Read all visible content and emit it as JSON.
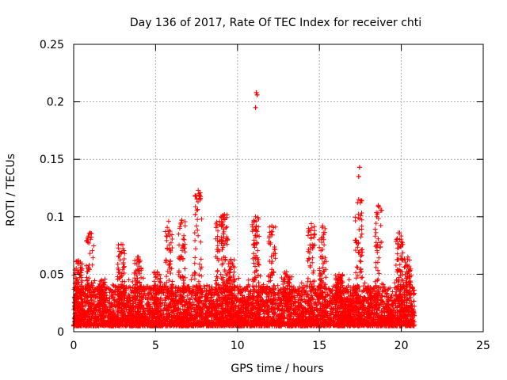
{
  "chart_data": {
    "type": "scatter",
    "title": "Day 136 of 2017, Rate Of TEC Index for receiver chti",
    "xlabel": "GPS time / hours",
    "ylabel": "ROTI / TECUs",
    "xlim": [
      0,
      25
    ],
    "ylim": [
      0,
      0.25
    ],
    "xticks": [
      0,
      5,
      10,
      15,
      20,
      25
    ],
    "yticks": [
      0,
      0.05,
      0.1,
      0.15,
      0.2,
      0.25
    ],
    "xtick_labels": [
      "0",
      "5",
      "10",
      "15",
      "20",
      "25"
    ],
    "ytick_labels": [
      "0",
      "0.05",
      "0.1",
      "0.15",
      "0.2",
      "0.25"
    ],
    "grid": true,
    "marker": "+",
    "color": "#ff0000",
    "data_range_hours": [
      0,
      20.8
    ],
    "baseline_band": [
      0.005,
      0.04
    ],
    "bursts": [
      {
        "x": 0.3,
        "ymax": 0.062
      },
      {
        "x": 1.0,
        "ymax": 0.086
      },
      {
        "x": 1.7,
        "ymax": 0.045
      },
      {
        "x": 2.9,
        "ymax": 0.076
      },
      {
        "x": 3.9,
        "ymax": 0.065
      },
      {
        "x": 5.1,
        "ymax": 0.052
      },
      {
        "x": 5.8,
        "ymax": 0.096
      },
      {
        "x": 6.6,
        "ymax": 0.097
      },
      {
        "x": 7.6,
        "ymax": 0.123
      },
      {
        "x": 8.9,
        "ymax": 0.096
      },
      {
        "x": 9.2,
        "ymax": 0.102
      },
      {
        "x": 9.6,
        "ymax": 0.063
      },
      {
        "x": 11.1,
        "ymax": 0.1
      },
      {
        "x": 12.1,
        "ymax": 0.092
      },
      {
        "x": 13.0,
        "ymax": 0.052
      },
      {
        "x": 14.5,
        "ymax": 0.094
      },
      {
        "x": 15.2,
        "ymax": 0.092
      },
      {
        "x": 16.2,
        "ymax": 0.05
      },
      {
        "x": 17.4,
        "ymax": 0.115
      },
      {
        "x": 18.6,
        "ymax": 0.11
      },
      {
        "x": 19.9,
        "ymax": 0.086
      },
      {
        "x": 20.4,
        "ymax": 0.065
      }
    ],
    "outliers": [
      {
        "x": 11.15,
        "y": 0.208
      },
      {
        "x": 11.2,
        "y": 0.206
      },
      {
        "x": 11.1,
        "y": 0.195
      },
      {
        "x": 17.45,
        "y": 0.143
      },
      {
        "x": 17.4,
        "y": 0.135
      },
      {
        "x": 7.65,
        "y": 0.12
      },
      {
        "x": 7.7,
        "y": 0.116
      },
      {
        "x": 18.5,
        "y": 0.1
      },
      {
        "x": 12.3,
        "y": 0.068
      },
      {
        "x": 3.95,
        "y": 0.065
      },
      {
        "x": 6.6,
        "y": 0.097
      }
    ]
  }
}
